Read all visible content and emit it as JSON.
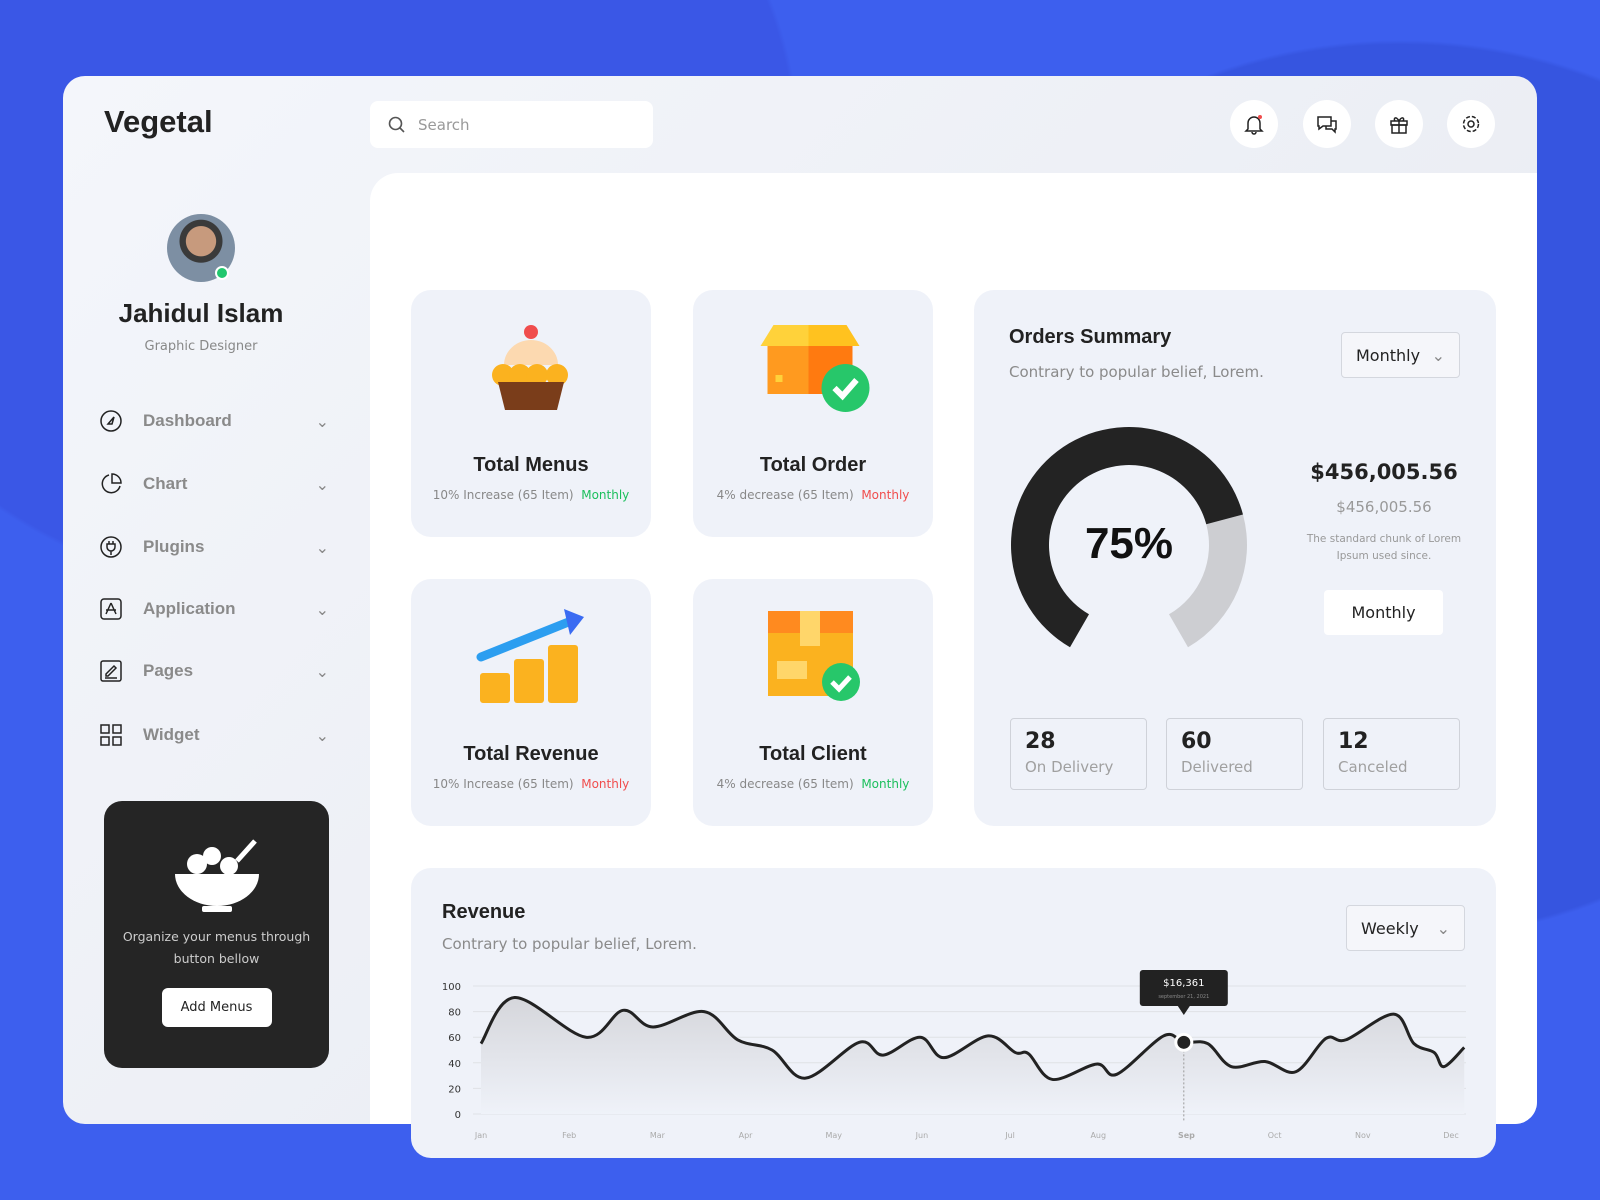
{
  "app": {
    "title": "Vegetal"
  },
  "search": {
    "placeholder": "Search"
  },
  "header_icons": [
    "bell-icon",
    "chat-icon",
    "gift-icon",
    "gear-icon"
  ],
  "user": {
    "name": "Jahidul Islam",
    "role": "Graphic Designer",
    "online": true
  },
  "sidebar": {
    "items": [
      {
        "label": "Dashboard",
        "icon": "gauge-icon"
      },
      {
        "label": "Chart",
        "icon": "pie-chart-icon"
      },
      {
        "label": "Plugins",
        "icon": "plug-icon"
      },
      {
        "label": "Application",
        "icon": "app-icon"
      },
      {
        "label": "Pages",
        "icon": "edit-page-icon"
      },
      {
        "label": "Widget",
        "icon": "grid-icon"
      }
    ]
  },
  "promo": {
    "text": "Organize your menus through button bellow",
    "button": "Add Menus"
  },
  "stats": [
    {
      "title": "Total Menus",
      "desc": "10% Increase (65 Item)",
      "period": "Monthly",
      "period_color": "#1bbf5c"
    },
    {
      "title": "Total Order",
      "desc": "4% decrease (65 Item)",
      "period": "Monthly",
      "period_color": "#f04d4d"
    },
    {
      "title": "Total Revenue",
      "desc": "10% Increase (65 Item)",
      "period": "Monthly",
      "period_color": "#f04d4d"
    },
    {
      "title": "Total Client",
      "desc": "4% decrease (65 Item)",
      "period": "Monthly",
      "period_color": "#1bbf5c"
    }
  ],
  "orders": {
    "title": "Orders Summary",
    "subtitle": "Contrary to popular belief, Lorem.",
    "period": "Monthly",
    "percent_label": "75%",
    "percent": 75,
    "amount": "$456,005.56",
    "amount_secondary": "$456,005.56",
    "note": "The standard chunk of Lorem Ipsum used since.",
    "button": "Monthly",
    "counts": [
      {
        "value": "28",
        "label": "On Delivery"
      },
      {
        "value": "60",
        "label": "Delivered"
      },
      {
        "value": "12",
        "label": "Canceled"
      }
    ]
  },
  "revenue": {
    "title": "Revenue",
    "subtitle": "Contrary to popular belief, Lorem.",
    "period": "Weekly"
  },
  "chart_data": {
    "type": "area",
    "categories": [
      "Jan",
      "Feb",
      "Mar",
      "Apr",
      "May",
      "Jun",
      "Jul",
      "Aug",
      "Sep",
      "Oct",
      "Nov",
      "Dec"
    ],
    "ylim": [
      0,
      100
    ],
    "yticks": [
      0,
      20,
      40,
      60,
      80,
      100
    ],
    "grid": true,
    "points": [
      [
        0,
        55
      ],
      [
        0.38,
        91
      ],
      [
        1.19,
        60
      ],
      [
        1.61,
        81
      ],
      [
        1.95,
        68
      ],
      [
        2.53,
        80
      ],
      [
        2.91,
        58
      ],
      [
        3.3,
        50
      ],
      [
        3.68,
        28
      ],
      [
        4.29,
        56
      ],
      [
        4.56,
        46
      ],
      [
        4.98,
        60
      ],
      [
        5.25,
        44
      ],
      [
        5.75,
        61
      ],
      [
        6.06,
        48
      ],
      [
        6.21,
        47
      ],
      [
        6.48,
        27
      ],
      [
        6.98,
        39
      ],
      [
        7.21,
        31
      ],
      [
        7.74,
        61
      ],
      [
        7.97,
        56
      ],
      [
        8.24,
        55
      ],
      [
        8.51,
        37
      ],
      [
        8.89,
        41
      ],
      [
        9.24,
        33
      ],
      [
        9.58,
        59
      ],
      [
        9.81,
        58
      ],
      [
        10.35,
        78
      ],
      [
        10.58,
        55
      ],
      [
        10.81,
        48
      ],
      [
        10.92,
        37
      ],
      [
        11.15,
        52
      ]
    ],
    "highlight": {
      "category": "Sep",
      "x": 7.97,
      "y": 56,
      "value_label": "$16,361",
      "date_label": "september 21, 2021"
    },
    "colors": {
      "line": "#222222",
      "fill": "#d5d6db"
    }
  }
}
